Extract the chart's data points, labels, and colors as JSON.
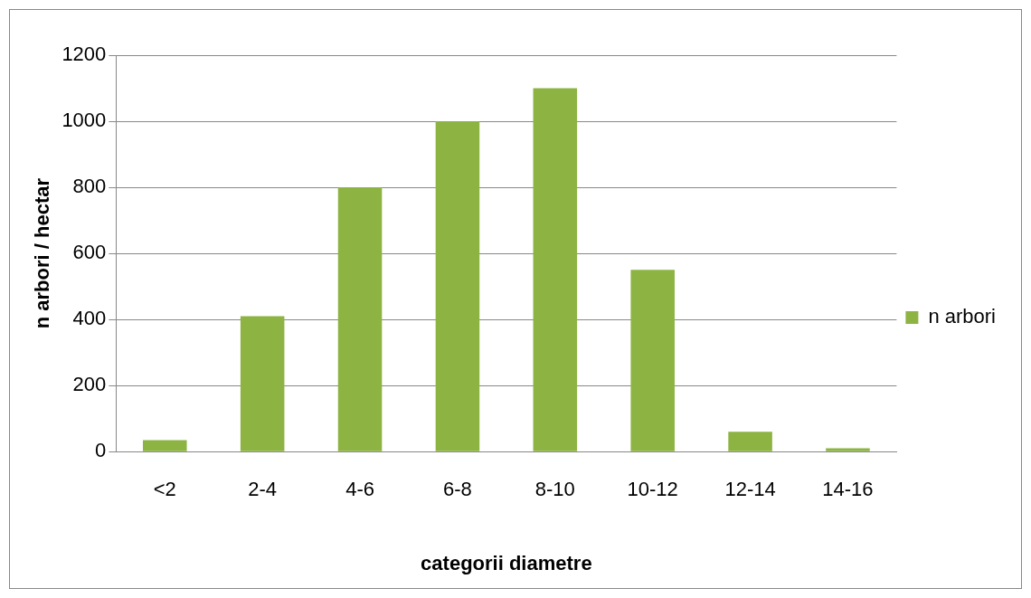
{
  "chart_data": {
    "type": "bar",
    "xlabel": "categorii diametre",
    "ylabel": "n arbori / hectar",
    "categories": [
      "<2",
      "2-4",
      "4-6",
      "6-8",
      "8-10",
      "10-12",
      "12-14",
      "14-16"
    ],
    "series": [
      {
        "name": "n arbori",
        "color": "#8db343",
        "values": [
          35,
          410,
          800,
          1000,
          1100,
          550,
          60,
          10
        ]
      }
    ],
    "ylim": [
      0,
      1200
    ],
    "yticks": [
      0,
      200,
      400,
      600,
      800,
      1000,
      1200
    ],
    "grid": "y",
    "legend": "right"
  }
}
